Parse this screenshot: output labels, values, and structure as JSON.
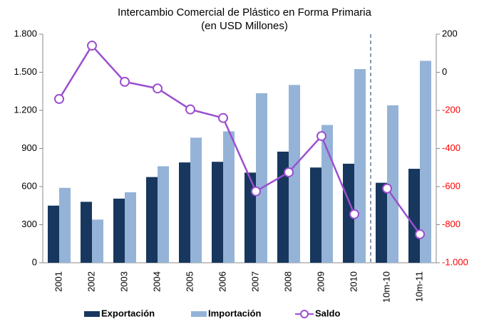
{
  "chart_data": {
    "type": "bar-line",
    "title": "Intercambio Comercial de Plástico en Forma Primaria",
    "subtitle": "(en USD Millones)",
    "categories": [
      "2001",
      "2002",
      "2003",
      "2004",
      "2005",
      "2006",
      "2007",
      "2008",
      "2009",
      "2010",
      "10m-10",
      "10m-11"
    ],
    "series": [
      {
        "name": "Exportación",
        "color": "#17375e",
        "type": "bar",
        "values": [
          450,
          480,
          505,
          675,
          790,
          795,
          710,
          875,
          750,
          780,
          630,
          740
        ]
      },
      {
        "name": "Importación",
        "color": "#95b3d7",
        "type": "bar",
        "values": [
          590,
          340,
          555,
          760,
          985,
          1035,
          1335,
          1400,
          1085,
          1525,
          1240,
          1590
        ]
      },
      {
        "name": "Saldo",
        "color": "#9b4fd0",
        "type": "line",
        "axis": "y2",
        "values": [
          -140,
          140,
          -50,
          -85,
          -195,
          -240,
          -625,
          -525,
          -335,
          -745,
          -610,
          -850
        ]
      }
    ],
    "ylim": [
      0,
      1800
    ],
    "yticks": [
      0,
      300,
      600,
      900,
      {
        "value": 1200,
        "label": "1.200"
      },
      {
        "value": 1500,
        "label": "1.500"
      },
      {
        "value": 1800,
        "label": "1.800"
      }
    ],
    "y2lim": [
      -1000,
      200
    ],
    "y2ticks": [
      {
        "value": -1000,
        "label": "-1.000"
      },
      -800,
      -600,
      -400,
      -200,
      0,
      200
    ],
    "y2tick_negative_color": "#ff0000",
    "legend": "bottom"
  }
}
